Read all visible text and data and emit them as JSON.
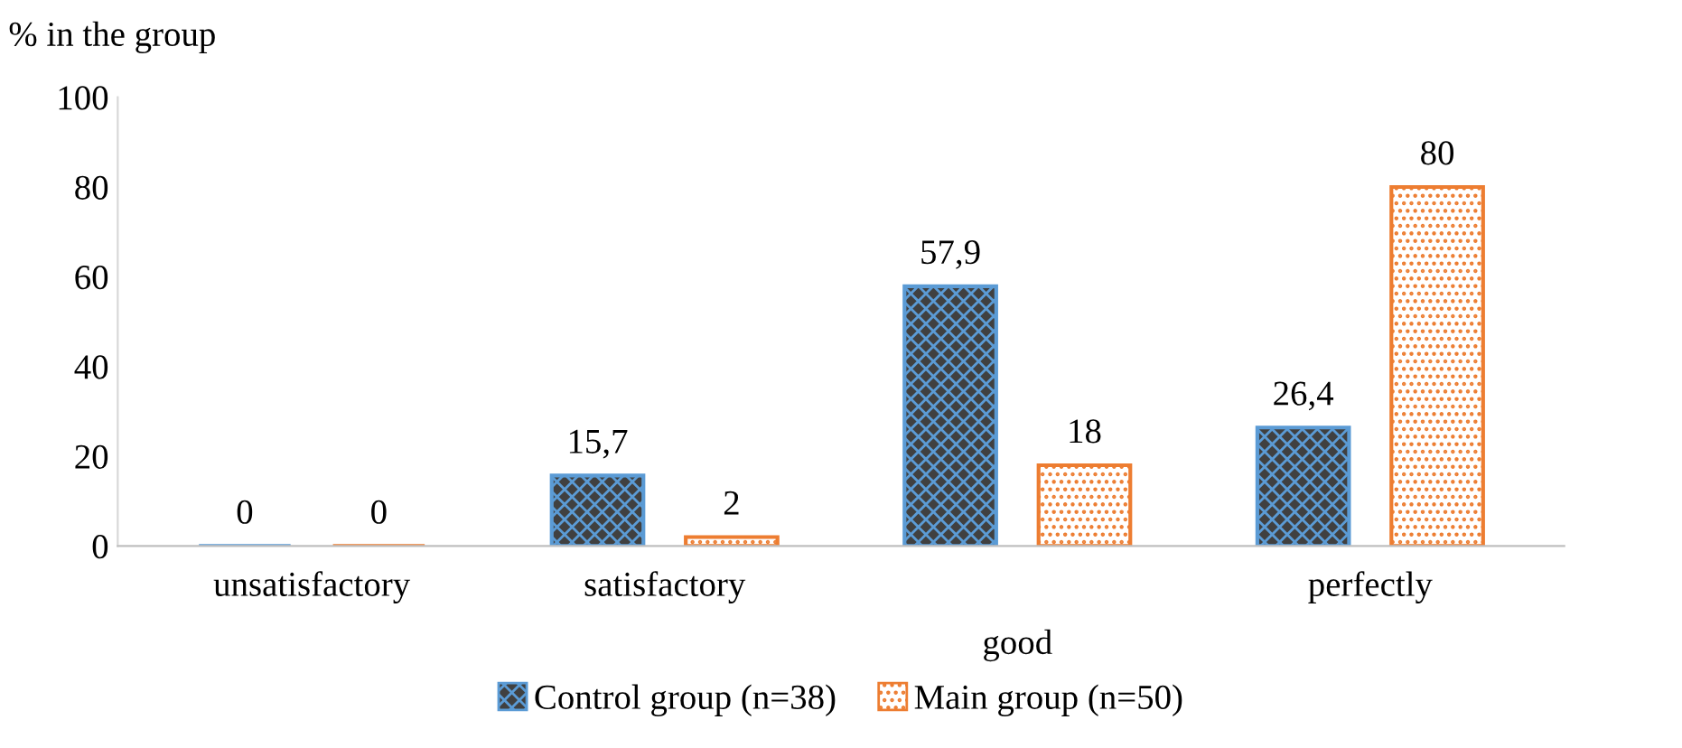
{
  "chart_data": {
    "type": "bar",
    "ylabel": "% in the group",
    "categories": [
      "unsatisfactory",
      "satisfactory",
      "good",
      "perfectly"
    ],
    "series": [
      {
        "name": "Control group (n=38)",
        "color": "#5b9bd5",
        "values": [
          0,
          15.7,
          57.9,
          26.4
        ],
        "value_labels": [
          "0",
          "15,7",
          "57,9",
          "26,4"
        ]
      },
      {
        "name": "Main group (n=50)",
        "color": "#ed7d31",
        "values": [
          0,
          2,
          18,
          80
        ],
        "value_labels": [
          "0",
          "2",
          "18",
          "80"
        ]
      }
    ],
    "ylim": [
      0,
      100
    ],
    "yticks": [
      0,
      20,
      40,
      60,
      80,
      100
    ],
    "grid": false,
    "legend": "bottom"
  }
}
